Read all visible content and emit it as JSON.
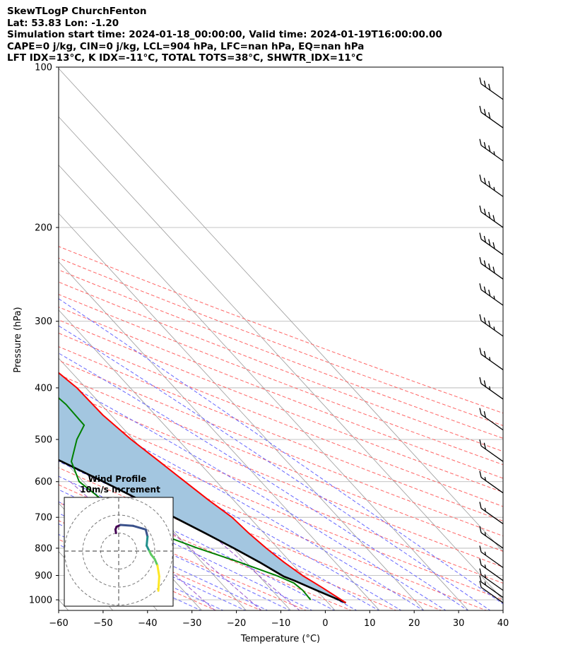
{
  "header": {
    "line1": "SkewTLogP ChurchFenton",
    "line2": "Lat: 53.83   Lon: -1.20",
    "line3": "Simulation start time: 2024-01-18_00:00:00, Valid time: 2024-01-19T16:00:00.00",
    "line4": "CAPE=0 j/kg, CIN=0 j/kg, LCL=904 hPa, LFC=nan hPa, EQ=nan hPa",
    "line5": "LFT IDX=13°C, K IDX=-11°C, TOTAL TOTS=38°C, SHWTR_IDX=11°C"
  },
  "chart_data": {
    "type": "skewt",
    "xlabel": "Temperature (°C)",
    "ylabel": "Pressure (hPa)",
    "xlim": [
      -60,
      40
    ],
    "ylim": [
      1050,
      100
    ],
    "x_ticks": [
      -60,
      -50,
      -40,
      -30,
      -20,
      -10,
      0,
      10,
      20,
      30,
      40
    ],
    "x_tick_labels": [
      "−60",
      "−50",
      "−40",
      "−30",
      "−20",
      "−10",
      "0",
      "10",
      "20",
      "30",
      "40"
    ],
    "y_ticks": [
      1000,
      900,
      800,
      700,
      600,
      500,
      400,
      300,
      200,
      100
    ],
    "y_tick_labels": [
      "1000",
      "900",
      "800",
      "700",
      "600",
      "500",
      "400",
      "300",
      "200",
      "100"
    ],
    "log_pressure": true,
    "grid": true,
    "colors": {
      "temperature": "#ff0000",
      "dewpoint": "#008000",
      "parcel": "#000000",
      "cin_fill": "#a3c6e0",
      "dry_adiabat": "#ff6666",
      "moist_adiabat": "#6666ff",
      "mixing_ratio": "#9955cc",
      "isotherm": "#aaaaaa"
    },
    "temperature": [
      {
        "p": 1013,
        "t": 4.0
      },
      {
        "p": 1000,
        "t": 3.6
      },
      {
        "p": 950,
        "t": 1.9
      },
      {
        "p": 900,
        "t": -0.1
      },
      {
        "p": 850,
        "t": -1.5
      },
      {
        "p": 800,
        "t": -2.6
      },
      {
        "p": 750,
        "t": -3.4
      },
      {
        "p": 700,
        "t": -3.9
      },
      {
        "p": 650,
        "t": -5.6
      },
      {
        "p": 600,
        "t": -7.1
      },
      {
        "p": 550,
        "t": -8.7
      },
      {
        "p": 500,
        "t": -10.5
      },
      {
        "p": 450,
        "t": -11.8
      },
      {
        "p": 400,
        "t": -12.0
      },
      {
        "p": 370,
        "t": -13.2
      },
      {
        "p": 330,
        "t": -15.9
      },
      {
        "p": 300,
        "t": -18.5
      },
      {
        "p": 260,
        "t": -21.5
      },
      {
        "p": 230,
        "t": -24.0
      },
      {
        "p": 210,
        "t": -23.3
      },
      {
        "p": 190,
        "t": -21.3
      },
      {
        "p": 170,
        "t": -17.8
      },
      {
        "p": 155,
        "t": -12.5
      },
      {
        "p": 145,
        "t": -9.0
      },
      {
        "p": 130,
        "t": -5.5
      },
      {
        "p": 115,
        "t": -3.5
      },
      {
        "p": 100,
        "t": -2.0
      }
    ],
    "dewpoint": [
      {
        "p": 1000,
        "t": -3.3
      },
      {
        "p": 960,
        "t": -3.1
      },
      {
        "p": 930,
        "t": -3.6
      },
      {
        "p": 900,
        "t": -6.0
      },
      {
        "p": 850,
        "t": -11.5
      },
      {
        "p": 800,
        "t": -18.0
      },
      {
        "p": 750,
        "t": -24.0
      },
      {
        "p": 700,
        "t": -27.0
      },
      {
        "p": 650,
        "t": -29.5
      },
      {
        "p": 600,
        "t": -30.9
      },
      {
        "p": 550,
        "t": -28.5
      },
      {
        "p": 500,
        "t": -22.7
      },
      {
        "p": 470,
        "t": -18.1
      },
      {
        "p": 430,
        "t": -17.9
      },
      {
        "p": 400,
        "t": -18.7
      },
      {
        "p": 360,
        "t": -17.0
      },
      {
        "p": 330,
        "t": -16.9
      },
      {
        "p": 300,
        "t": -19.5
      },
      {
        "p": 260,
        "t": -25.6
      },
      {
        "p": 235,
        "t": -30.3
      },
      {
        "p": 215,
        "t": -35.8
      },
      {
        "p": 200,
        "t": -37.2
      },
      {
        "p": 180,
        "t": -37.7
      },
      {
        "p": 165,
        "t": -38.8
      },
      {
        "p": 145,
        "t": -45.2
      },
      {
        "p": 135,
        "t": -49.2
      },
      {
        "p": 120,
        "t": -52.9
      },
      {
        "p": 110,
        "t": -55.5
      },
      {
        "p": 100,
        "t": -58.5
      }
    ],
    "parcel": [
      {
        "p": 1013,
        "t": 4.0
      },
      {
        "p": 960,
        "t": 0.0
      },
      {
        "p": 920,
        "t": -3.0
      },
      {
        "p": 904,
        "t": -4.5
      },
      {
        "p": 850,
        "t": -7.0
      },
      {
        "p": 800,
        "t": -9.9
      },
      {
        "p": 750,
        "t": -13.2
      },
      {
        "p": 700,
        "t": -16.9
      },
      {
        "p": 650,
        "t": -21.0
      },
      {
        "p": 600,
        "t": -25.5
      },
      {
        "p": 550,
        "t": -30.7
      },
      {
        "p": 500,
        "t": -36.4
      },
      {
        "p": 450,
        "t": -42.8
      },
      {
        "p": 400,
        "t": -49.7
      },
      {
        "p": 350,
        "t": -57.2
      },
      {
        "p": 300,
        "t": -65.3
      },
      {
        "p": 250,
        "t": -74.0
      },
      {
        "p": 200,
        "t": -83.8
      },
      {
        "p": 150,
        "t": -94.8
      },
      {
        "p": 100,
        "t": -108.0
      }
    ],
    "wind_barbs": [
      {
        "p": 100,
        "speed_kt": 30
      },
      {
        "p": 115,
        "speed_kt": 30
      },
      {
        "p": 130,
        "speed_kt": 30
      },
      {
        "p": 150,
        "speed_kt": 35
      },
      {
        "p": 175,
        "speed_kt": 35
      },
      {
        "p": 200,
        "speed_kt": 40
      },
      {
        "p": 225,
        "speed_kt": 40
      },
      {
        "p": 250,
        "speed_kt": 40
      },
      {
        "p": 280,
        "speed_kt": 35
      },
      {
        "p": 320,
        "speed_kt": 35
      },
      {
        "p": 370,
        "speed_kt": 25
      },
      {
        "p": 420,
        "speed_kt": 25
      },
      {
        "p": 480,
        "speed_kt": 20
      },
      {
        "p": 550,
        "speed_kt": 20
      },
      {
        "p": 630,
        "speed_kt": 15
      },
      {
        "p": 720,
        "speed_kt": 15
      },
      {
        "p": 800,
        "speed_kt": 15
      },
      {
        "p": 870,
        "speed_kt": 15
      },
      {
        "p": 920,
        "speed_kt": 15
      },
      {
        "p": 960,
        "speed_kt": 15
      },
      {
        "p": 990,
        "speed_kt": 15
      },
      {
        "p": 1013,
        "speed_kt": 10
      }
    ],
    "inset": {
      "title_line1": "Wind Profile",
      "title_line2": "10m/s increment",
      "rings": [
        10,
        20,
        30
      ],
      "hodograph_u": [
        -1.5,
        -1.8,
        -1.2,
        1.0,
        8.0,
        15.0,
        16.0,
        15.5,
        17.0,
        18.0,
        20.0,
        21.5,
        22.5,
        22.0
      ],
      "hodograph_v": [
        10.0,
        12.0,
        13.5,
        14.5,
        14.0,
        12.0,
        8.0,
        3.0,
        0.0,
        -2.0,
        -4.5,
        -8.0,
        -14.0,
        -22.0
      ],
      "colormap": [
        "#440154",
        "#3b528b",
        "#21918c",
        "#5ec962",
        "#fde725"
      ]
    }
  }
}
